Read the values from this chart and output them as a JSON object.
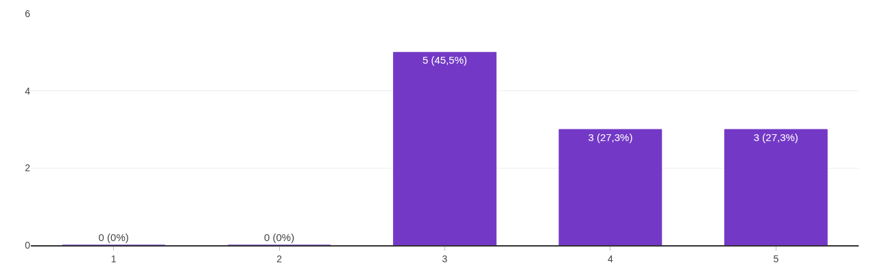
{
  "chart_data": {
    "type": "bar",
    "categories": [
      "1",
      "2",
      "3",
      "4",
      "5"
    ],
    "values": [
      0,
      0,
      5,
      3,
      3
    ],
    "value_labels": [
      "0 (0%)",
      "0 (0%)",
      "5 (45,5%)",
      "3 (27,3%)",
      "3 (27,3%)"
    ],
    "color": "#7339c6",
    "ylim": [
      0,
      6
    ],
    "yticks": [
      0,
      2,
      4,
      6
    ],
    "grid": "y"
  }
}
